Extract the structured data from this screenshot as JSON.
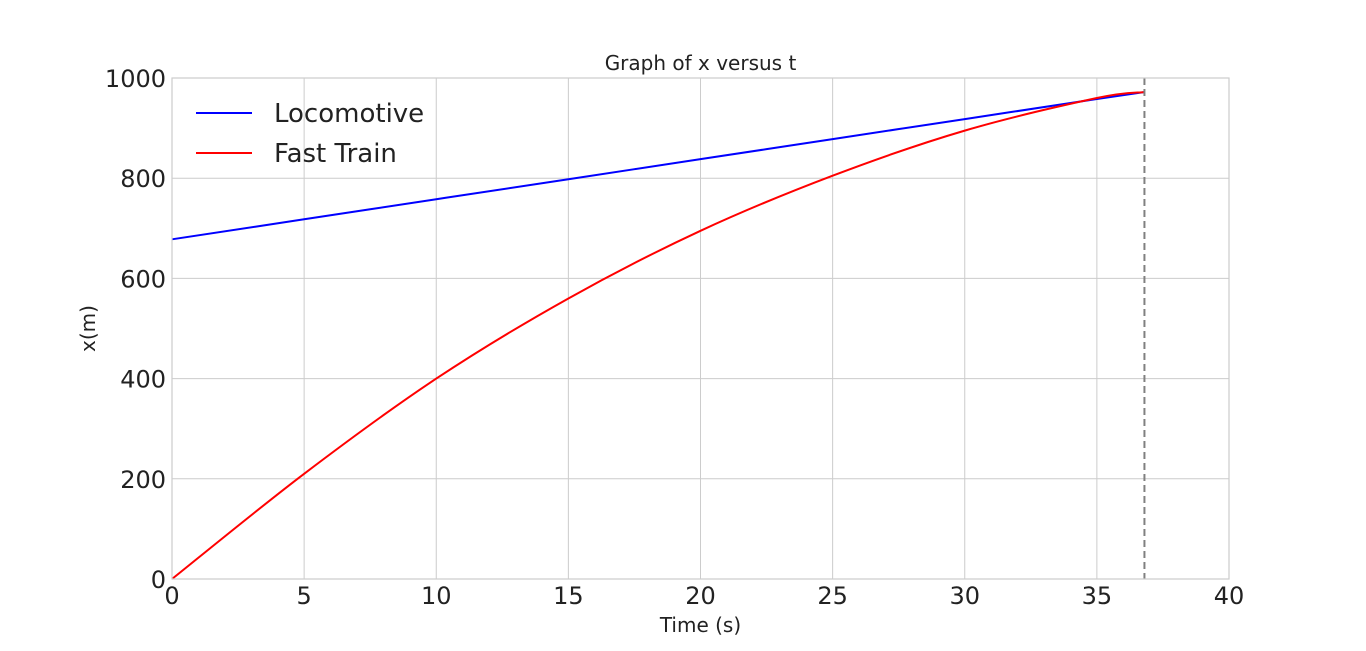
{
  "chart_data": {
    "type": "line",
    "title": "Graph of x versus t",
    "xlabel": "Time (s)",
    "ylabel": "x(m)",
    "xlim": [
      0,
      40
    ],
    "ylim": [
      0,
      1000
    ],
    "xticks": [
      0,
      5,
      10,
      15,
      20,
      25,
      30,
      35,
      40
    ],
    "yticks": [
      0,
      200,
      400,
      600,
      800,
      1000
    ],
    "grid": true,
    "legend_position": "top-left",
    "series": [
      {
        "name": "Locomotive",
        "color": "#0000ff",
        "x": [
          0,
          5,
          10,
          15,
          20,
          25,
          30,
          35,
          36.8
        ],
        "y": [
          678,
          718,
          758,
          798,
          838,
          878,
          918,
          958,
          972
        ]
      },
      {
        "name": "Fast Train",
        "color": "#ff0000",
        "x": [
          0,
          5,
          10,
          15,
          20,
          25,
          30,
          35,
          36.8
        ],
        "y": [
          0,
          210,
          400,
          560,
          695,
          805,
          895,
          960,
          972
        ]
      }
    ],
    "annotations": [
      {
        "type": "vline",
        "x": 36.8,
        "color": "#808080",
        "style": "dashed"
      }
    ]
  }
}
